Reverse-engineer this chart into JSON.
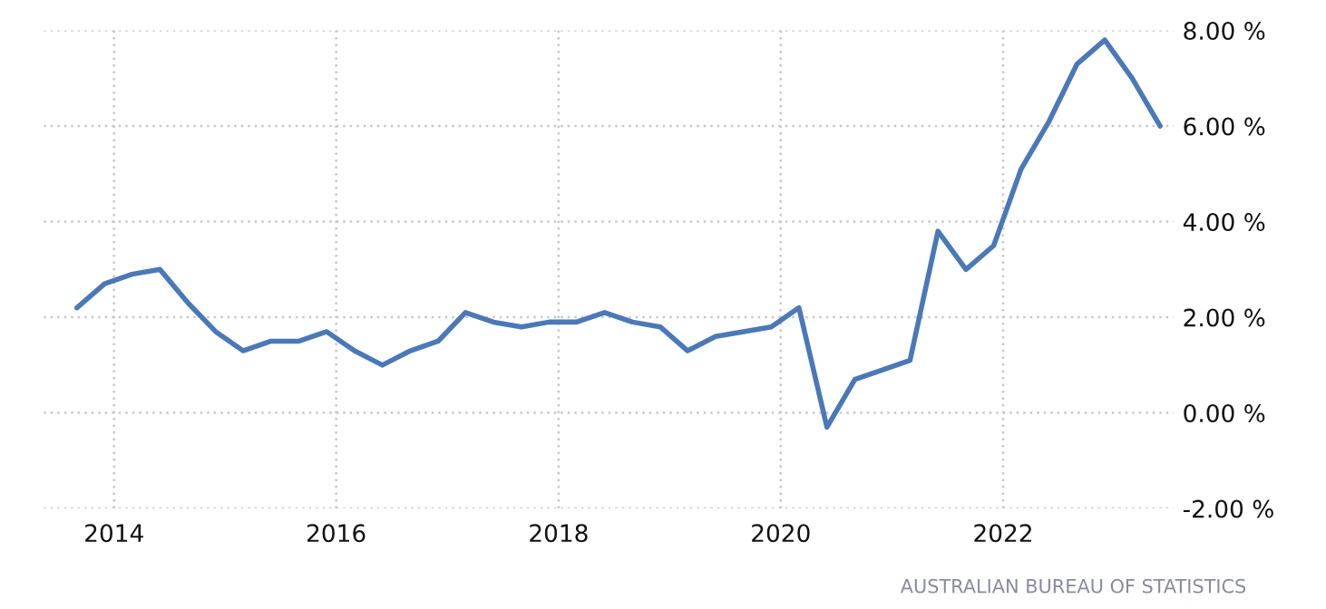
{
  "chart_data": {
    "type": "line",
    "x": [
      "2013-09",
      "2013-12",
      "2014-03",
      "2014-06",
      "2014-09",
      "2014-12",
      "2015-03",
      "2015-06",
      "2015-09",
      "2015-12",
      "2016-03",
      "2016-06",
      "2016-09",
      "2016-12",
      "2017-03",
      "2017-06",
      "2017-09",
      "2017-12",
      "2018-03",
      "2018-06",
      "2018-09",
      "2018-12",
      "2019-03",
      "2019-06",
      "2019-09",
      "2019-12",
      "2020-03",
      "2020-06",
      "2020-09",
      "2020-12",
      "2021-03",
      "2021-06",
      "2021-09",
      "2021-12",
      "2022-03",
      "2022-06",
      "2022-09",
      "2022-12",
      "2023-03",
      "2023-06"
    ],
    "series": [
      {
        "color": "#4a78b8",
        "values": [
          2.2,
          2.7,
          2.9,
          3.0,
          2.3,
          1.7,
          1.3,
          1.5,
          1.5,
          1.7,
          1.3,
          1.0,
          1.3,
          1.5,
          2.1,
          1.9,
          1.8,
          1.9,
          1.9,
          2.1,
          1.9,
          1.8,
          1.3,
          1.6,
          1.7,
          1.8,
          2.2,
          -0.3,
          0.7,
          0.9,
          1.1,
          3.8,
          3.0,
          3.5,
          5.1,
          6.1,
          7.3,
          7.8,
          7.0,
          6.0
        ]
      }
    ],
    "xlim": [
      "2013-05-15",
      "2023-07-15"
    ],
    "xticks": [
      {
        "value": "2014-01-01",
        "label": "2014"
      },
      {
        "value": "2016-01-01",
        "label": "2016"
      },
      {
        "value": "2018-01-01",
        "label": "2018"
      },
      {
        "value": "2020-01-01",
        "label": "2020"
      },
      {
        "value": "2022-01-01",
        "label": "2022"
      }
    ],
    "ylim": [
      -2,
      8
    ],
    "yticks": [
      {
        "value": -2,
        "label": "-2.00 %"
      },
      {
        "value": 0,
        "label": "0.00 %"
      },
      {
        "value": 2,
        "label": "2.00 %"
      },
      {
        "value": 4,
        "label": "4.00 %"
      },
      {
        "value": 6,
        "label": "6.00 %"
      },
      {
        "value": 8,
        "label": "8.00 %"
      }
    ],
    "grid": true,
    "line_style": "solid",
    "annotations": [
      "AUSTRALIAN BUREAU OF STATISTICS"
    ]
  }
}
